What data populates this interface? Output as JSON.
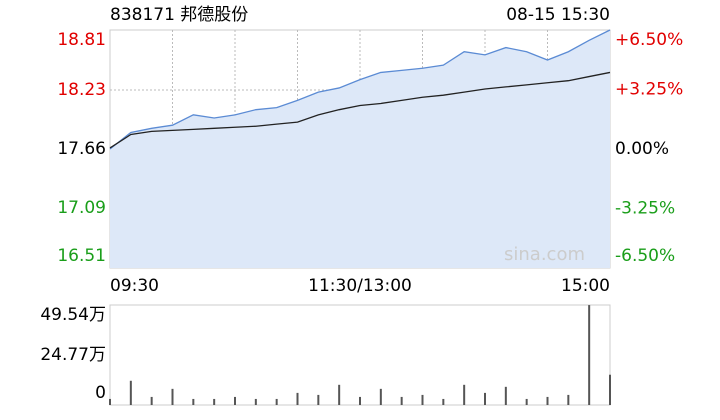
{
  "header": {
    "title": "838171 邦德股份",
    "datetime": "08-15 15:30",
    "watermark": "sina.com"
  },
  "chart_data": [
    {
      "type": "line",
      "xlim": [
        0,
        240
      ],
      "xticks": [
        {
          "value": 0,
          "label": "09:30"
        },
        {
          "value": 120,
          "label": "11:30/13:00"
        },
        {
          "value": 240,
          "label": "15:00"
        }
      ],
      "x": [
        0,
        10,
        20,
        30,
        40,
        50,
        60,
        70,
        80,
        90,
        100,
        110,
        120,
        130,
        140,
        150,
        160,
        170,
        180,
        190,
        200,
        210,
        220,
        230,
        240
      ],
      "ylim": [
        16.51,
        18.81
      ],
      "yticks": [
        16.51,
        17.09,
        17.66,
        18.23,
        18.81
      ],
      "y2lim": [
        -6.5,
        6.5
      ],
      "y2ticks": [
        {
          "value": -6.5,
          "label": "-6.50%"
        },
        {
          "value": -3.25,
          "label": "-3.25%"
        },
        {
          "value": 0,
          "label": "0.00%"
        },
        {
          "value": 3.25,
          "label": "+3.25%"
        },
        {
          "value": 6.5,
          "label": "+6.50%"
        }
      ],
      "up_color": "#e10000",
      "down_color": "#1a9e1a",
      "grid": true,
      "series": [
        {
          "name": "price",
          "color": "#5b8bd4",
          "fill": "#dde8f8",
          "values": [
            17.66,
            17.82,
            17.86,
            17.89,
            17.99,
            17.96,
            17.99,
            18.04,
            18.06,
            18.13,
            18.21,
            18.25,
            18.33,
            18.4,
            18.42,
            18.44,
            18.47,
            18.6,
            18.57,
            18.64,
            18.6,
            18.52,
            18.6,
            18.71,
            18.81
          ]
        },
        {
          "name": "average",
          "color": "#222222",
          "values": [
            17.67,
            17.8,
            17.83,
            17.84,
            17.85,
            17.86,
            17.87,
            17.88,
            17.9,
            17.92,
            17.99,
            18.04,
            18.08,
            18.1,
            18.13,
            18.16,
            18.18,
            18.21,
            18.24,
            18.26,
            18.28,
            18.3,
            18.32,
            18.36,
            18.4
          ]
        }
      ]
    },
    {
      "type": "bar",
      "xlim": [
        0,
        240
      ],
      "x": [
        0,
        10,
        20,
        30,
        40,
        50,
        60,
        70,
        80,
        90,
        100,
        110,
        120,
        130,
        140,
        150,
        160,
        170,
        180,
        190,
        200,
        210,
        220,
        230,
        240
      ],
      "values": [
        3,
        12,
        4,
        8,
        3,
        3,
        4,
        3,
        3,
        6,
        5,
        10,
        4,
        8,
        4,
        5,
        3,
        10,
        6,
        9,
        3,
        4,
        5,
        49.5,
        15
      ],
      "color": "#555555",
      "ylim": [
        0,
        49.54
      ],
      "yticks": [
        0,
        {
          "value": 24.77,
          "label": "24.77万"
        },
        {
          "value": 49.54,
          "label": "49.54万"
        }
      ]
    }
  ]
}
